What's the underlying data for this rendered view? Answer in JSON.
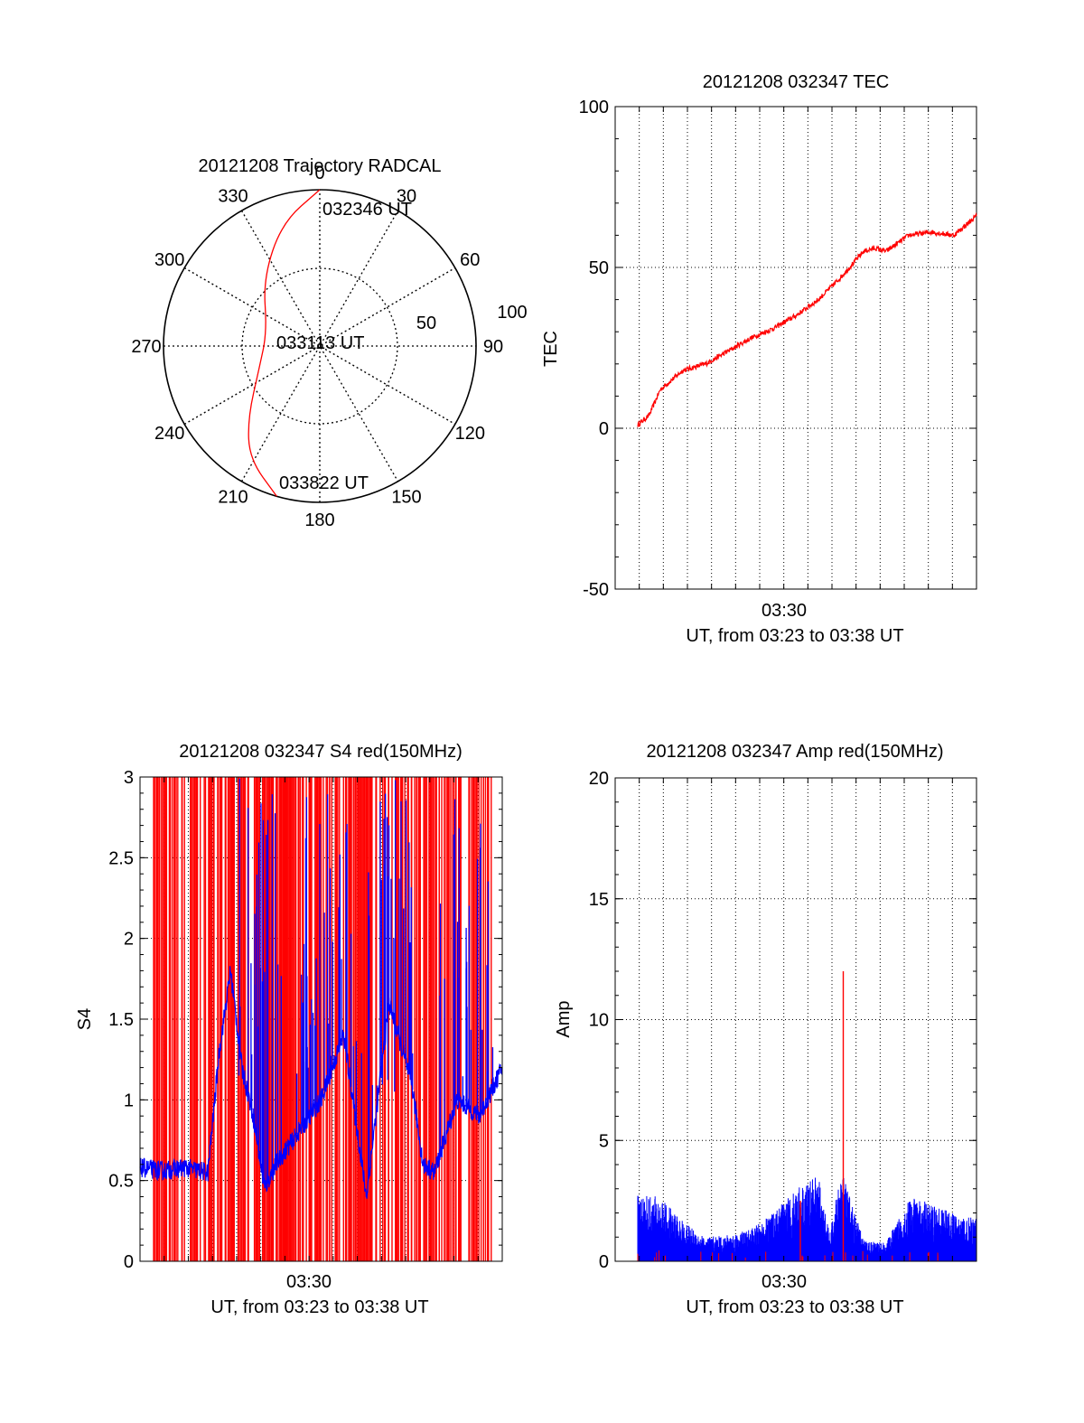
{
  "chart_data": [
    {
      "type": "polar",
      "title": "20121208 Trajectory RADCAL",
      "azimuth_labels": [
        "0",
        "30",
        "60",
        "90",
        "120",
        "150",
        "180",
        "210",
        "240",
        "270",
        "300",
        "330"
      ],
      "radial_labels": [
        "50",
        "100"
      ],
      "annotations": [
        {
          "text": "032346 UT",
          "az": 0,
          "el": 10
        },
        {
          "text": "033113 UT",
          "az": 0,
          "el": 90
        },
        {
          "text": "033822 UT",
          "az": 195,
          "el": 10
        }
      ],
      "trajectory": {
        "color": "#ff0000",
        "points": [
          {
            "az": 0,
            "el": 10
          },
          {
            "az": 343,
            "el": 24
          },
          {
            "az": 320,
            "el": 45
          },
          {
            "az": 285,
            "el": 62
          },
          {
            "az": 250,
            "el": 57
          },
          {
            "az": 225,
            "el": 38
          },
          {
            "az": 212,
            "el": 22
          },
          {
            "az": 196,
            "el": 10
          }
        ]
      }
    },
    {
      "type": "line",
      "title": "20121208 032347 TEC",
      "xlabel": "UT, from 03:23 to 03:38 UT",
      "ylabel": "TEC",
      "x_tick_label": "03:30",
      "xlim": [
        0,
        16
      ],
      "ylim": [
        -50,
        100
      ],
      "yticks": [
        -50,
        0,
        50,
        100
      ],
      "grid": true,
      "series": [
        {
          "color": "#ff0000",
          "x": [
            1,
            1.5,
            2,
            3,
            4,
            5,
            6,
            7,
            8,
            9,
            10,
            11,
            11.5,
            12,
            13,
            14,
            15,
            16
          ],
          "y": [
            1,
            4,
            12,
            18,
            20,
            24,
            28,
            31,
            35,
            40,
            47,
            55,
            56,
            55,
            60,
            61,
            60,
            66
          ]
        }
      ]
    },
    {
      "type": "line",
      "title": "20121208 032347 S4 red(150MHz)",
      "xlabel": "UT, from 03:23 to 03:38 UT",
      "ylabel": "S4",
      "x_tick_label": "03:30",
      "xlim": [
        0,
        16
      ],
      "ylim": [
        0,
        3
      ],
      "yticks": [
        0,
        0.5,
        1,
        1.5,
        2,
        2.5,
        3
      ],
      "grid": true,
      "series": [
        {
          "color": "#ff0000",
          "x": [
            0.5,
            15.5
          ],
          "y": [
            0,
            3
          ]
        },
        {
          "color": "#0000ff",
          "x": [
            0,
            1,
            2,
            3,
            3.5,
            4,
            4.5,
            5,
            5.5,
            6,
            7,
            8,
            9,
            10,
            11,
            12,
            12.5,
            13,
            14,
            15,
            16
          ],
          "y": [
            0.58,
            0.56,
            0.58,
            0.55,
            1.3,
            1.8,
            1.2,
            0.9,
            0.45,
            0.6,
            0.8,
            1.0,
            1.4,
            0.4,
            1.6,
            1.1,
            0.6,
            0.55,
            1.0,
            0.9,
            1.2
          ]
        }
      ]
    },
    {
      "type": "line",
      "title": "20121208 032347 Amp red(150MHz)",
      "xlabel": "UT, from 03:23 to 03:38 UT",
      "ylabel": "Amp",
      "x_tick_label": "03:30",
      "xlim": [
        0,
        16
      ],
      "ylim": [
        0,
        20
      ],
      "yticks": [
        0,
        5,
        10,
        15,
        20
      ],
      "grid": true,
      "series": [
        {
          "color": "#0000ff",
          "x": [
            0,
            1,
            2,
            3,
            4,
            5,
            6,
            7,
            8,
            9,
            9.5,
            10,
            11,
            12,
            13,
            14,
            15,
            16
          ],
          "y": [
            2.5,
            2.6,
            2.4,
            1.5,
            0.9,
            1.0,
            1.2,
            1.8,
            2.8,
            3.2,
            1.0,
            3.5,
            0.8,
            0.7,
            2.4,
            2.2,
            1.8,
            1.6
          ]
        },
        {
          "color": "#ff0000",
          "x": [
            8.2,
            10.1
          ],
          "y": [
            2.5,
            12
          ]
        }
      ]
    }
  ]
}
